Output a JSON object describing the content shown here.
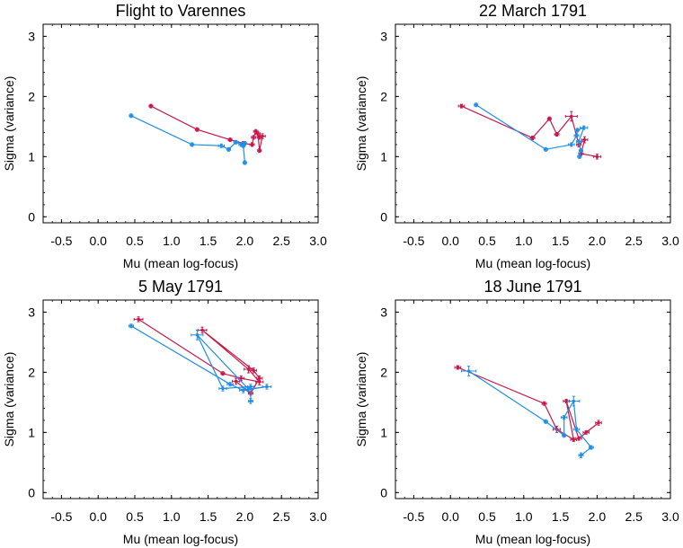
{
  "colors": {
    "series_red": "#c8174a",
    "series_blue": "#1f8ee6",
    "axis": "#000000",
    "grid": "#777777"
  },
  "chart_data": [
    {
      "type": "line",
      "title": "Flight to Varennes",
      "xlabel": "Mu (mean log-focus)",
      "ylabel": "Sigma (variance)",
      "xlim": [
        -0.75,
        3.0
      ],
      "ylim": [
        -0.1,
        3.2
      ],
      "xticks": [
        "-0.5",
        "0.0",
        "0.5",
        "1.0",
        "1.5",
        "2.0",
        "2.5",
        "3.0"
      ],
      "yticks": [
        "0",
        "1",
        "2",
        "3"
      ],
      "grid": "dotted",
      "series": [
        {
          "color": "#c8174a",
          "points": [
            {
              "x": 0.72,
              "y": 1.84,
              "xe": 0.02,
              "ye": 0.02
            },
            {
              "x": 1.35,
              "y": 1.45,
              "xe": 0.02,
              "ye": 0.02
            },
            {
              "x": 1.8,
              "y": 1.28,
              "xe": 0.02,
              "ye": 0.02
            },
            {
              "x": 1.98,
              "y": 1.22,
              "xe": 0.02,
              "ye": 0.02
            },
            {
              "x": 2.1,
              "y": 1.2,
              "xe": 0.03,
              "ye": 0.03
            },
            {
              "x": 2.12,
              "y": 1.32,
              "xe": 0.03,
              "ye": 0.03
            },
            {
              "x": 2.15,
              "y": 1.42,
              "xe": 0.03,
              "ye": 0.03
            },
            {
              "x": 2.2,
              "y": 1.32,
              "xe": 0.03,
              "ye": 0.03
            },
            {
              "x": 2.24,
              "y": 1.34,
              "xe": 0.04,
              "ye": 0.04
            },
            {
              "x": 2.2,
              "y": 1.1,
              "xe": 0.02,
              "ye": 0.02
            },
            {
              "x": 2.18,
              "y": 1.38,
              "xe": 0.03,
              "ye": 0.03
            }
          ]
        },
        {
          "color": "#1f8ee6",
          "points": [
            {
              "x": 0.45,
              "y": 1.68,
              "xe": 0.02,
              "ye": 0.02
            },
            {
              "x": 1.28,
              "y": 1.2,
              "xe": 0.02,
              "ye": 0.02
            },
            {
              "x": 1.68,
              "y": 1.18,
              "xe": 0.04,
              "ye": 0.03
            },
            {
              "x": 1.78,
              "y": 1.12,
              "xe": 0.02,
              "ye": 0.02
            },
            {
              "x": 1.88,
              "y": 1.24,
              "xe": 0.03,
              "ye": 0.02
            },
            {
              "x": 1.95,
              "y": 1.2,
              "xe": 0.03,
              "ye": 0.03
            },
            {
              "x": 2.0,
              "y": 1.22,
              "xe": 0.02,
              "ye": 0.02
            },
            {
              "x": 1.98,
              "y": 1.18,
              "xe": 0.02,
              "ye": 0.02
            },
            {
              "x": 2.0,
              "y": 0.9,
              "xe": 0.02,
              "ye": 0.02
            }
          ]
        }
      ]
    },
    {
      "type": "line",
      "title": "22 March 1791",
      "xlabel": "Mu (mean log-focus)",
      "ylabel": "Sigma (variance)",
      "xlim": [
        -0.75,
        3.0
      ],
      "ylim": [
        -0.1,
        3.2
      ],
      "xticks": [
        "-0.5",
        "0.0",
        "0.5",
        "1.0",
        "1.5",
        "2.0",
        "2.5",
        "3.0"
      ],
      "yticks": [
        "0",
        "1",
        "2",
        "3"
      ],
      "grid": "dotted",
      "series": [
        {
          "color": "#c8174a",
          "points": [
            {
              "x": 0.15,
              "y": 1.84,
              "xe": 0.04,
              "ye": 0.02
            },
            {
              "x": 1.12,
              "y": 1.31,
              "xe": 0.03,
              "ye": 0.02
            },
            {
              "x": 1.35,
              "y": 1.63,
              "xe": 0.02,
              "ye": 0.02
            },
            {
              "x": 1.45,
              "y": 1.37,
              "xe": 0.03,
              "ye": 0.03
            },
            {
              "x": 1.65,
              "y": 1.67,
              "xe": 0.08,
              "ye": 0.08
            },
            {
              "x": 1.75,
              "y": 1.2,
              "xe": 0.03,
              "ye": 0.04
            },
            {
              "x": 1.83,
              "y": 1.28,
              "xe": 0.04,
              "ye": 0.05
            },
            {
              "x": 1.78,
              "y": 1.05,
              "xe": 0.03,
              "ye": 0.03
            },
            {
              "x": 2.0,
              "y": 1.0,
              "xe": 0.05,
              "ye": 0.04
            }
          ]
        },
        {
          "color": "#1f8ee6",
          "points": [
            {
              "x": 0.35,
              "y": 1.86,
              "xe": 0.02,
              "ye": 0.02
            },
            {
              "x": 1.3,
              "y": 1.12,
              "xe": 0.02,
              "ye": 0.02
            },
            {
              "x": 1.65,
              "y": 1.2,
              "xe": 0.04,
              "ye": 0.03
            },
            {
              "x": 1.72,
              "y": 1.35,
              "xe": 0.03,
              "ye": 0.03
            },
            {
              "x": 1.73,
              "y": 1.44,
              "xe": 0.03,
              "ye": 0.03
            },
            {
              "x": 1.82,
              "y": 1.48,
              "xe": 0.05,
              "ye": 0.03
            },
            {
              "x": 1.75,
              "y": 1.25,
              "xe": 0.03,
              "ye": 0.03
            },
            {
              "x": 1.78,
              "y": 1.1,
              "xe": 0.02,
              "ye": 0.02
            },
            {
              "x": 1.76,
              "y": 1.0,
              "xe": 0.02,
              "ye": 0.02
            }
          ]
        }
      ]
    },
    {
      "type": "line",
      "title": "5 May 1791",
      "xlabel": "Mu (mean log-focus)",
      "ylabel": "Sigma (variance)",
      "xlim": [
        -0.75,
        3.0
      ],
      "ylim": [
        -0.1,
        3.2
      ],
      "xticks": [
        "-0.5",
        "0.0",
        "0.5",
        "1.0",
        "1.5",
        "2.0",
        "2.5",
        "3.0"
      ],
      "yticks": [
        "0",
        "1",
        "2",
        "3"
      ],
      "grid": "dotted",
      "series": [
        {
          "color": "#c8174a",
          "points": [
            {
              "x": 0.55,
              "y": 2.88,
              "xe": 0.06,
              "ye": 0.04
            },
            {
              "x": 1.7,
              "y": 1.98,
              "xe": 0.02,
              "ye": 0.02
            },
            {
              "x": 1.95,
              "y": 1.9,
              "xe": 0.04,
              "ye": 0.04
            },
            {
              "x": 2.2,
              "y": 1.84,
              "xe": 0.05,
              "ye": 0.05
            },
            {
              "x": 2.05,
              "y": 2.05,
              "xe": 0.06,
              "ye": 0.06
            },
            {
              "x": 1.42,
              "y": 2.7,
              "xe": 0.06,
              "ye": 0.05
            },
            {
              "x": 2.12,
              "y": 2.03,
              "xe": 0.04,
              "ye": 0.04
            },
            {
              "x": 2.2,
              "y": 1.9,
              "xe": 0.04,
              "ye": 0.04
            },
            {
              "x": 2.08,
              "y": 1.65,
              "xe": 0.03,
              "ye": 0.03
            },
            {
              "x": 1.88,
              "y": 1.85,
              "xe": 0.05,
              "ye": 0.05
            }
          ]
        },
        {
          "color": "#1f8ee6",
          "points": [
            {
              "x": 0.45,
              "y": 2.77,
              "xe": 0.03,
              "ye": 0.03
            },
            {
              "x": 1.8,
              "y": 1.8,
              "xe": 0.04,
              "ye": 0.03
            },
            {
              "x": 1.98,
              "y": 1.7,
              "xe": 0.05,
              "ye": 0.04
            },
            {
              "x": 2.3,
              "y": 1.76,
              "xe": 0.06,
              "ye": 0.04
            },
            {
              "x": 2.05,
              "y": 1.72,
              "xe": 0.04,
              "ye": 0.04
            },
            {
              "x": 1.35,
              "y": 2.62,
              "xe": 0.08,
              "ye": 0.08
            },
            {
              "x": 1.7,
              "y": 1.73,
              "xe": 0.05,
              "ye": 0.04
            },
            {
              "x": 2.08,
              "y": 1.76,
              "xe": 0.04,
              "ye": 0.04
            },
            {
              "x": 2.08,
              "y": 1.52,
              "xe": 0.03,
              "ye": 0.04
            }
          ]
        }
      ]
    },
    {
      "type": "line",
      "title": "18 June 1791",
      "xlabel": "Mu (mean log-focus)",
      "ylabel": "Sigma (variance)",
      "xlim": [
        -0.75,
        3.0
      ],
      "ylim": [
        -0.1,
        3.2
      ],
      "xticks": [
        "-0.5",
        "0.0",
        "0.5",
        "1.0",
        "1.5",
        "2.0",
        "2.5",
        "3.0"
      ],
      "yticks": [
        "0",
        "1",
        "2",
        "3"
      ],
      "grid": "dotted",
      "series": [
        {
          "color": "#c8174a",
          "points": [
            {
              "x": 0.1,
              "y": 2.08,
              "xe": 0.04,
              "ye": 0.03
            },
            {
              "x": 1.28,
              "y": 1.48,
              "xe": 0.03,
              "ye": 0.02
            },
            {
              "x": 1.45,
              "y": 1.05,
              "xe": 0.05,
              "ye": 0.05
            },
            {
              "x": 1.68,
              "y": 0.88,
              "xe": 0.04,
              "ye": 0.03
            },
            {
              "x": 1.58,
              "y": 1.52,
              "xe": 0.04,
              "ye": 0.03
            },
            {
              "x": 1.75,
              "y": 0.9,
              "xe": 0.04,
              "ye": 0.03
            },
            {
              "x": 2.02,
              "y": 1.16,
              "xe": 0.04,
              "ye": 0.04
            },
            {
              "x": 1.85,
              "y": 1.0,
              "xe": 0.04,
              "ye": 0.03
            }
          ]
        },
        {
          "color": "#1f8ee6",
          "points": [
            {
              "x": 0.25,
              "y": 2.02,
              "xe": 0.1,
              "ye": 0.08
            },
            {
              "x": 1.3,
              "y": 1.18,
              "xe": 0.02,
              "ye": 0.02
            },
            {
              "x": 1.55,
              "y": 0.95,
              "xe": 0.02,
              "ye": 0.02
            },
            {
              "x": 1.55,
              "y": 1.25,
              "xe": 0.04,
              "ye": 0.03
            },
            {
              "x": 1.68,
              "y": 1.52,
              "xe": 0.08,
              "ye": 0.08
            },
            {
              "x": 1.72,
              "y": 1.05,
              "xe": 0.04,
              "ye": 0.03
            },
            {
              "x": 1.92,
              "y": 0.75,
              "xe": 0.03,
              "ye": 0.03
            },
            {
              "x": 1.78,
              "y": 0.62,
              "xe": 0.03,
              "ye": 0.04
            }
          ]
        }
      ]
    }
  ]
}
